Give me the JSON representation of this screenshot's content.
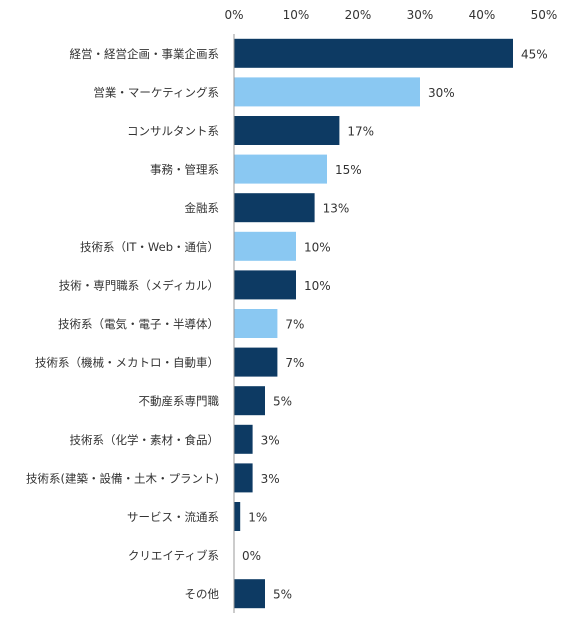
{
  "chart_data": {
    "type": "bar",
    "orientation": "horizontal",
    "title": "",
    "xlabel": "",
    "ylabel": "",
    "xlim": [
      0,
      50
    ],
    "ticks": [
      "0%",
      "10%",
      "20%",
      "30%",
      "40%",
      "50%"
    ],
    "tick_values": [
      0,
      10,
      20,
      30,
      40,
      50
    ],
    "grid": false,
    "legend": "none",
    "categories": [
      "経営・経営企画・事業企画系",
      "営業・マーケティング系",
      "コンサルタント系",
      "事務・管理系",
      "金融系",
      "技術系（IT・Web・通信）",
      "技術・専門職系（メディカル）",
      "技術系（電気・電子・半導体）",
      "技術系（機械・メカトロ・自動車）",
      "不動産系専門職",
      "技術系（化学・素材・食品）",
      "技術系(建築・設備・土木・プラント)",
      "サービス・流通系",
      "クリエイティブ系",
      "その他"
    ],
    "values": [
      45,
      30,
      17,
      15,
      13,
      10,
      10,
      7,
      7,
      5,
      3,
      3,
      1,
      0,
      5
    ],
    "value_labels": [
      "45%",
      "30%",
      "17%",
      "15%",
      "13%",
      "10%",
      "10%",
      "7%",
      "7%",
      "5%",
      "3%",
      "3%",
      "1%",
      "0%",
      "5%"
    ],
    "bar_colors": [
      "#0d3a63",
      "#8ac8f2",
      "#0d3a63",
      "#8ac8f2",
      "#0d3a63",
      "#8ac8f2",
      "#0d3a63",
      "#8ac8f2",
      "#0d3a63",
      "#0d3a63",
      "#0d3a63",
      "#0d3a63",
      "#0d3a63",
      "#0d3a63",
      "#0d3a63"
    ]
  }
}
